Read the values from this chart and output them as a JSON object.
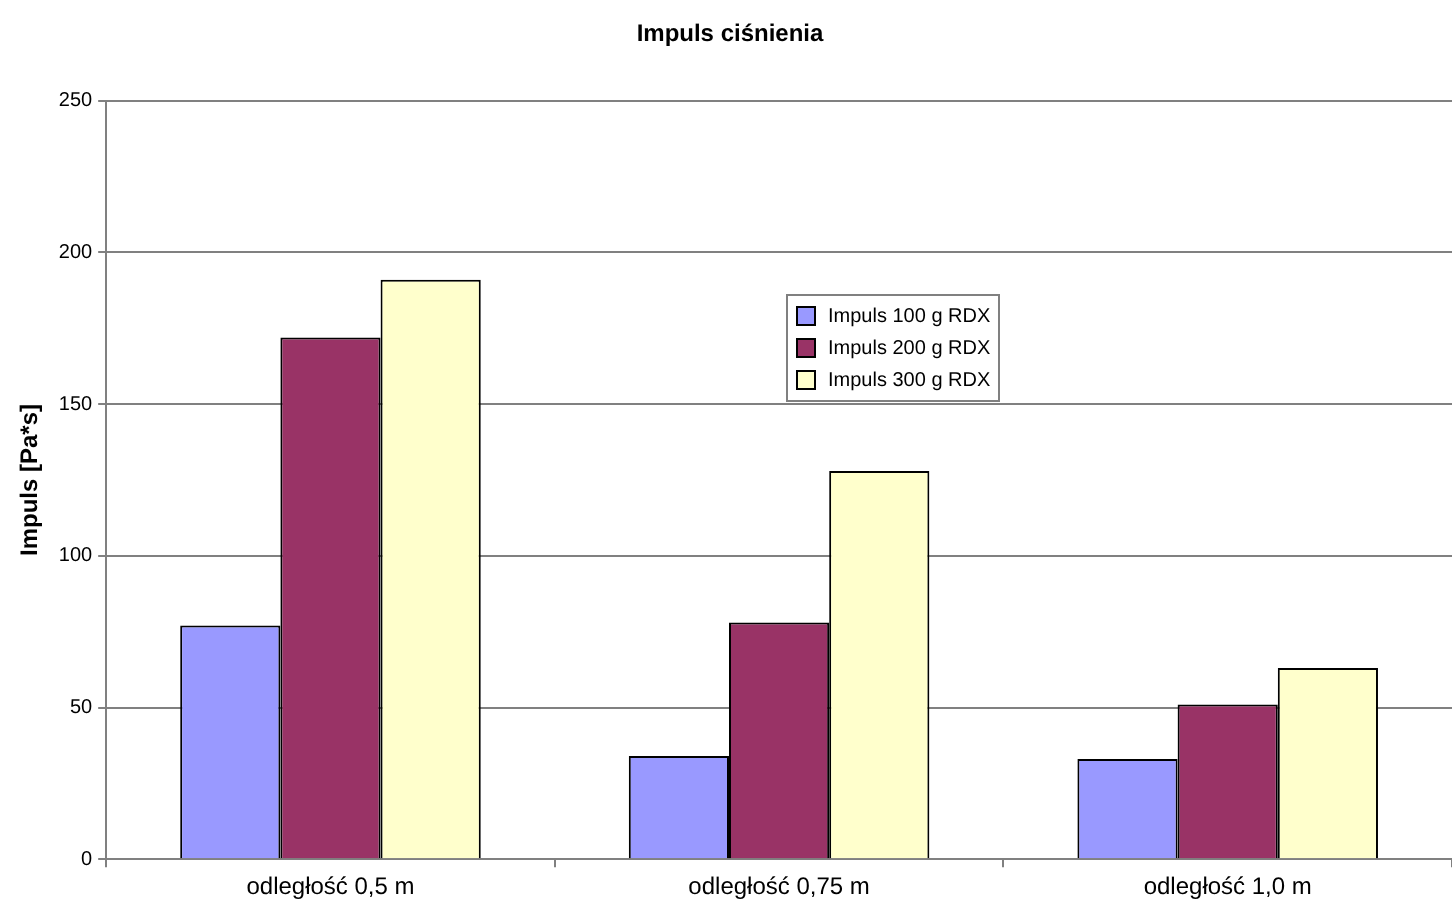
{
  "chart_data": {
    "type": "bar",
    "title": "Impuls ciśnienia",
    "ylabel": "Impuls [Pa*s]",
    "categories": [
      "odległość 0,5 m",
      "odległość 0,75 m",
      "odległość 1,0 m"
    ],
    "series": [
      {
        "name": "Impuls 100 g RDX",
        "color": "#9999ff",
        "values": [
          77,
          34,
          33
        ]
      },
      {
        "name": "Impuls 200 g RDX",
        "color": "#993366",
        "values": [
          172,
          78,
          51
        ]
      },
      {
        "name": "Impuls 300 g RDX",
        "color": "#ffffcc",
        "values": [
          191,
          128,
          63
        ]
      }
    ],
    "ylim": [
      0,
      250
    ],
    "yticks": [
      0,
      50,
      100,
      150,
      200,
      250
    ],
    "grid": "y",
    "legend": "top"
  }
}
